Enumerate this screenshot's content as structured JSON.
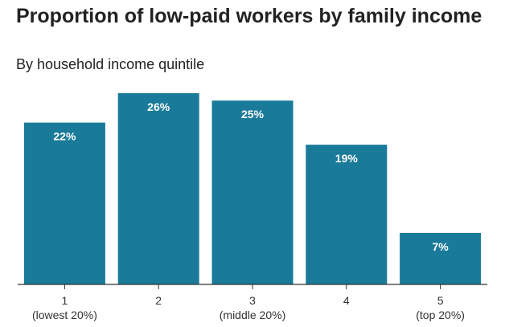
{
  "chart_data": {
    "type": "bar",
    "title": "Proportion of low-paid workers by family income",
    "subtitle": "By household income quintile",
    "categories": [
      "1",
      "2",
      "3",
      "4",
      "5"
    ],
    "category_sublabels": [
      "(lowest 20%)",
      "",
      "(middle 20%)",
      "",
      "(top 20%)"
    ],
    "values": [
      22,
      26,
      25,
      19,
      7
    ],
    "data_labels": [
      "22%",
      "26%",
      "25%",
      "19%",
      "7%"
    ],
    "xlabel": "",
    "ylabel": "",
    "ylim": [
      0,
      26
    ],
    "grid": false,
    "legend": "none",
    "colors": {
      "bar": "#1a7a99",
      "axis": "#333333",
      "bar_label": "#ffffff"
    }
  }
}
